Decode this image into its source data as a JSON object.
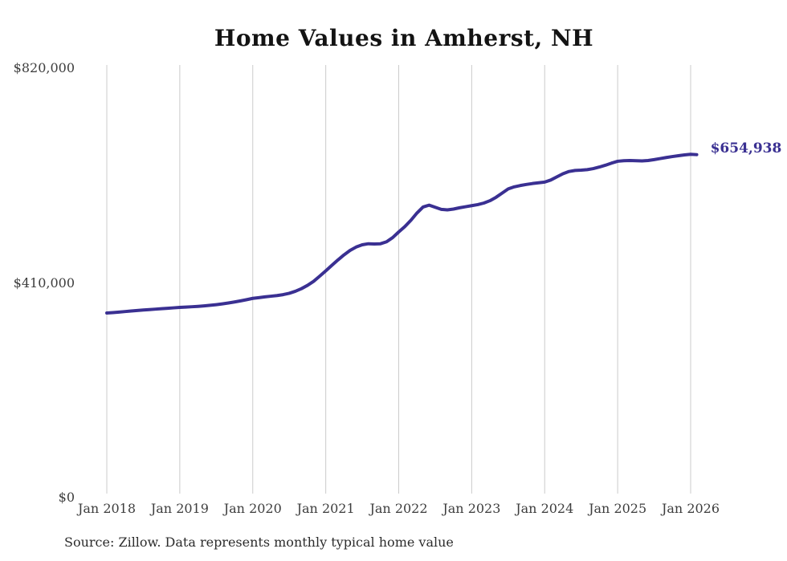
{
  "chart": {
    "title": "Home Values in Amherst, NH",
    "source": "Source: Zillow. Data represents monthly typical home value",
    "end_label": "$654,938"
  },
  "chart_data": {
    "type": "line",
    "title": "Home Values in Amherst, NH",
    "series_name": "Monthly typical home value",
    "line_color": "#3a3092",
    "gridline_color": "#cbcbcb",
    "grid": "vertical-only",
    "legend": "none",
    "ylim": [
      0,
      820000
    ],
    "latest_value": 654938,
    "x_ticks": [
      "Jan 2018",
      "Jan 2019",
      "Jan 2020",
      "Jan 2021",
      "Jan 2022",
      "Jan 2023",
      "Jan 2024",
      "Jan 2025",
      "Jan 2026"
    ],
    "y_ticks": [
      {
        "label": "$820,000",
        "value": 820000
      },
      {
        "label": "$410,000",
        "value": 410000
      },
      {
        "label": "$0",
        "value": 0
      }
    ],
    "frequency": "monthly",
    "months": [
      "2018-01",
      "2018-02",
      "2018-03",
      "2018-04",
      "2018-05",
      "2018-06",
      "2018-07",
      "2018-08",
      "2018-09",
      "2018-10",
      "2018-11",
      "2018-12",
      "2019-01",
      "2019-02",
      "2019-03",
      "2019-04",
      "2019-05",
      "2019-06",
      "2019-07",
      "2019-08",
      "2019-09",
      "2019-10",
      "2019-11",
      "2019-12",
      "2020-01",
      "2020-02",
      "2020-03",
      "2020-04",
      "2020-05",
      "2020-06",
      "2020-07",
      "2020-08",
      "2020-09",
      "2020-10",
      "2020-11",
      "2020-12",
      "2021-01",
      "2021-02",
      "2021-03",
      "2021-04",
      "2021-05",
      "2021-06",
      "2021-07",
      "2021-08",
      "2021-09",
      "2021-10",
      "2021-11",
      "2021-12",
      "2022-01",
      "2022-02",
      "2022-03",
      "2022-04",
      "2022-05",
      "2022-06",
      "2022-07",
      "2022-08",
      "2022-09",
      "2022-10",
      "2022-11",
      "2022-12",
      "2023-01",
      "2023-02",
      "2023-03",
      "2023-04",
      "2023-05",
      "2023-06",
      "2023-07",
      "2023-08",
      "2023-09",
      "2023-10",
      "2023-11",
      "2023-12",
      "2024-01",
      "2024-02",
      "2024-03",
      "2024-04",
      "2024-05",
      "2024-06",
      "2024-07",
      "2024-08",
      "2024-09",
      "2024-10",
      "2024-11",
      "2024-12",
      "2025-01",
      "2025-02",
      "2025-03",
      "2025-04",
      "2025-05",
      "2025-06",
      "2025-07",
      "2025-08",
      "2025-09",
      "2025-10",
      "2025-11",
      "2025-12",
      "2026-01",
      "2026-02"
    ],
    "values": [
      352500,
      353300,
      354200,
      355300,
      356400,
      357400,
      358300,
      359100,
      359900,
      360700,
      361500,
      362400,
      363300,
      363900,
      364500,
      365200,
      366100,
      367200,
      368500,
      370000,
      371700,
      373600,
      375700,
      378000,
      380500,
      381900,
      383300,
      384600,
      385900,
      387600,
      390200,
      394000,
      399000,
      405300,
      413000,
      422800,
      433000,
      443500,
      453800,
      463500,
      472000,
      478500,
      482800,
      484800,
      484300,
      484800,
      488500,
      496500,
      507300,
      517500,
      529500,
      543500,
      555000,
      558500,
      554500,
      550500,
      549500,
      551000,
      553500,
      555500,
      557500,
      559500,
      562500,
      567000,
      573500,
      581500,
      589500,
      593500,
      596000,
      598000,
      599800,
      601200,
      602500,
      606500,
      612500,
      618500,
      622800,
      624800,
      625300,
      626300,
      628300,
      631300,
      634800,
      638800,
      642300,
      643300,
      643800,
      643300,
      643000,
      643800,
      645500,
      647500,
      649500,
      651300,
      653000,
      654500,
      655600,
      654938
    ]
  }
}
